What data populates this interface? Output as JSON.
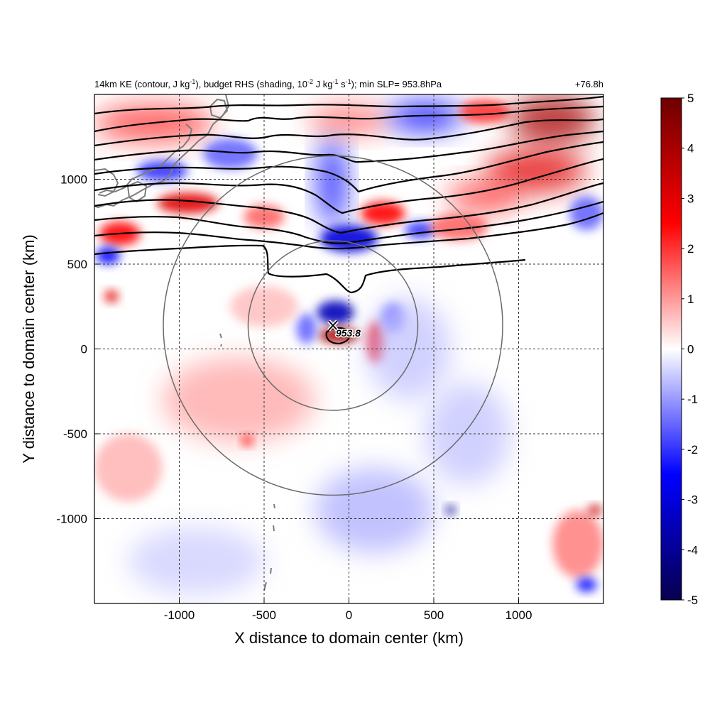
{
  "figure": {
    "title_left_parts": [
      "14km KE (contour, J kg",
      "-1",
      "), budget RHS (shading, 10",
      "-2",
      " J kg",
      "-1",
      " s",
      "-1",
      "); min SLP= 953.8hPa"
    ],
    "title_right": "+76.8h"
  },
  "chart_data": {
    "type": "heatmap",
    "title": "14km KE (contour, J kg-1), budget RHS (shading, 10-2 J kg-1 s-1); min SLP= 953.8hPa",
    "forecast_time": "+76.8h",
    "xlabel": "X distance to domain center (km)",
    "ylabel": "Y distance to domain center (km)",
    "xlim": [
      -1500,
      1500
    ],
    "ylim": [
      -1500,
      1500
    ],
    "xticks": [
      -1000,
      -500,
      0,
      500,
      1000
    ],
    "yticks": [
      -1000,
      -500,
      0,
      500,
      1000
    ],
    "xtick_labels": [
      "-1000",
      "-500",
      "0",
      "500",
      "1000"
    ],
    "ytick_labels": [
      "-1000",
      "-500",
      "0",
      "500",
      "1000"
    ],
    "grid": "dashed",
    "colorbar": {
      "range": [
        -5,
        5
      ],
      "ticks": [
        "5",
        "4",
        "3",
        "2",
        "1",
        "0",
        "-1",
        "-2",
        "-3",
        "-4",
        "-5"
      ],
      "colormap": [
        "#08004f",
        "#0000ff",
        "#ffffff",
        "#ff0000",
        "#6e0000"
      ]
    },
    "storm_center": {
      "x": -90,
      "y": 140,
      "label": "953.8"
    },
    "range_rings_km": [
      500,
      1000
    ],
    "shading_blobs": [
      {
        "x": -1150,
        "y": 1330,
        "rx": 350,
        "ry": 110,
        "v": 2.0
      },
      {
        "x": -950,
        "y": 860,
        "rx": 180,
        "ry": 60,
        "v": 3.0
      },
      {
        "x": -1350,
        "y": 680,
        "rx": 120,
        "ry": 70,
        "v": 2.5
      },
      {
        "x": -1100,
        "y": 1050,
        "rx": 150,
        "ry": 60,
        "v": -2.0
      },
      {
        "x": -700,
        "y": 1150,
        "rx": 160,
        "ry": 90,
        "v": -1.5
      },
      {
        "x": -500,
        "y": 780,
        "rx": 120,
        "ry": 70,
        "v": 1.5
      },
      {
        "x": 0,
        "y": 1350,
        "rx": 240,
        "ry": 90,
        "v": 1.5
      },
      {
        "x": -100,
        "y": 980,
        "rx": 80,
        "ry": 260,
        "v": -2.5
      },
      {
        "x": 0,
        "y": 650,
        "rx": 170,
        "ry": 80,
        "v": -3.0
      },
      {
        "x": 200,
        "y": 800,
        "rx": 130,
        "ry": 70,
        "v": 2.5
      },
      {
        "x": 420,
        "y": 700,
        "rx": 90,
        "ry": 50,
        "v": -2.0
      },
      {
        "x": 450,
        "y": 1370,
        "rx": 220,
        "ry": 90,
        "v": -2.5
      },
      {
        "x": 800,
        "y": 1400,
        "rx": 150,
        "ry": 70,
        "v": 2.0
      },
      {
        "x": 1200,
        "y": 1350,
        "rx": 250,
        "ry": 150,
        "v": 4.0
      },
      {
        "x": 1100,
        "y": 1050,
        "rx": 300,
        "ry": 130,
        "v": 3.0
      },
      {
        "x": 800,
        "y": 900,
        "rx": 220,
        "ry": 90,
        "v": 2.0
      },
      {
        "x": 650,
        "y": 720,
        "rx": 170,
        "ry": 80,
        "v": 1.5
      },
      {
        "x": 1400,
        "y": 800,
        "rx": 100,
        "ry": 100,
        "v": -1.5
      },
      {
        "x": -1420,
        "y": 550,
        "rx": 70,
        "ry": 50,
        "v": -2.5
      },
      {
        "x": -1400,
        "y": 310,
        "rx": 40,
        "ry": 35,
        "v": 3.0
      },
      {
        "x": -80,
        "y": 215,
        "rx": 110,
        "ry": 70,
        "v": -3.5
      },
      {
        "x": -60,
        "y": 80,
        "rx": 120,
        "ry": 45,
        "v": 4.0
      },
      {
        "x": 160,
        "y": 40,
        "rx": 50,
        "ry": 120,
        "v": 2.5
      },
      {
        "x": 260,
        "y": 180,
        "rx": 70,
        "ry": 90,
        "v": -1.5
      },
      {
        "x": -250,
        "y": 120,
        "rx": 60,
        "ry": 90,
        "v": -1.5
      },
      {
        "x": -650,
        "y": -300,
        "rx": 450,
        "ry": 250,
        "v": 0.9
      },
      {
        "x": -1300,
        "y": -700,
        "rx": 200,
        "ry": 200,
        "v": 0.7
      },
      {
        "x": -600,
        "y": -540,
        "rx": 30,
        "ry": 30,
        "v": 2.5
      },
      {
        "x": 150,
        "y": -950,
        "rx": 350,
        "ry": 250,
        "v": -0.8
      },
      {
        "x": 700,
        "y": -500,
        "rx": 250,
        "ry": 300,
        "v": -0.6
      },
      {
        "x": 600,
        "y": -950,
        "rx": 28,
        "ry": 28,
        "v": -4.0
      },
      {
        "x": 1350,
        "y": -1150,
        "rx": 150,
        "ry": 200,
        "v": 1.2
      },
      {
        "x": 1450,
        "y": -950,
        "rx": 40,
        "ry": 30,
        "v": 3.5
      },
      {
        "x": 1400,
        "y": -1390,
        "rx": 60,
        "ry": 40,
        "v": -2.5
      },
      {
        "x": -900,
        "y": -1250,
        "rx": 400,
        "ry": 200,
        "v": -0.5
      },
      {
        "x": 350,
        "y": 0,
        "rx": 250,
        "ry": 300,
        "v": -0.6
      },
      {
        "x": -500,
        "y": 250,
        "rx": 200,
        "ry": 120,
        "v": 0.6
      }
    ]
  }
}
